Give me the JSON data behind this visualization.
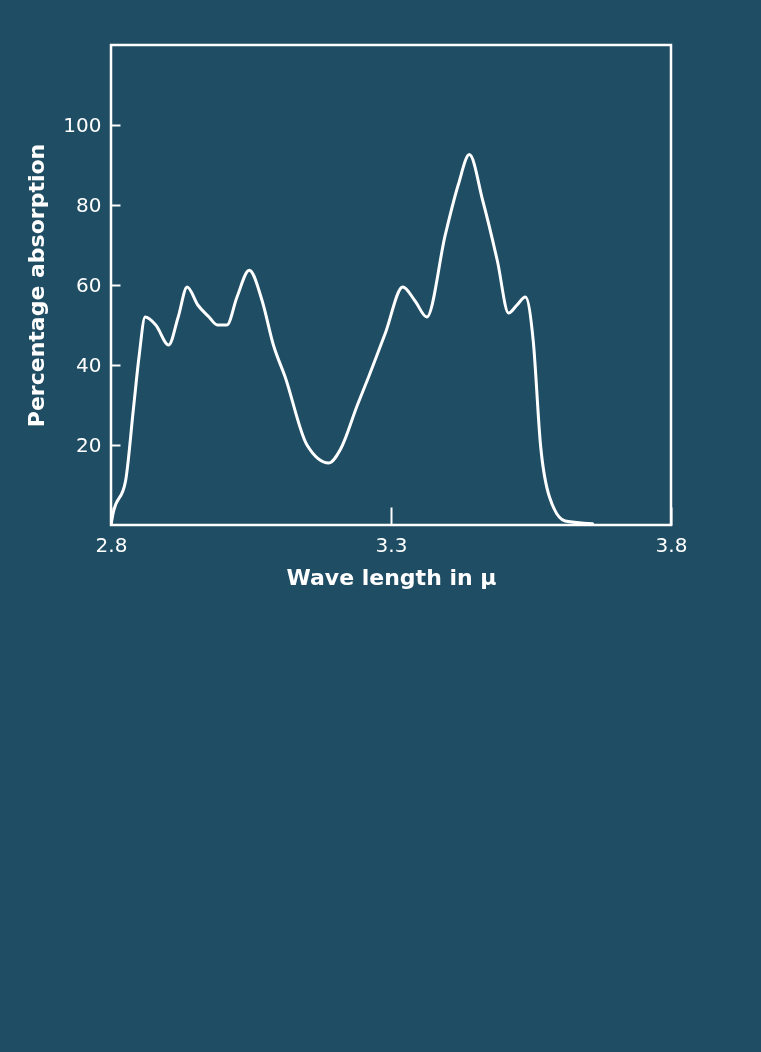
{
  "chart_data": {
    "type": "line",
    "xlabel": "Wave length in μ",
    "ylabel": "Percentage absorption",
    "x": [
      2.8,
      2.803,
      2.826,
      2.84,
      2.85,
      2.861,
      2.88,
      2.903,
      2.92,
      2.936,
      2.955,
      2.975,
      2.99,
      3.007,
      3.025,
      3.047,
      3.07,
      3.09,
      3.111,
      3.15,
      3.189,
      3.21,
      3.24,
      3.26,
      3.29,
      3.321,
      3.343,
      3.364,
      3.397,
      3.42,
      3.44,
      3.464,
      3.49,
      3.51,
      3.525,
      3.54,
      3.554,
      3.567,
      3.583,
      3.611,
      3.66
    ],
    "series": [
      {
        "color": "#ffffff",
        "values": [
          0,
          2.4,
          11,
          29,
          42,
          52,
          50,
          45,
          52,
          59.5,
          55,
          52,
          50,
          50,
          57,
          63.7,
          56,
          45,
          37,
          20,
          15.5,
          19,
          30,
          37,
          48,
          59.5,
          56,
          52,
          72.6,
          85,
          92.6,
          81,
          66,
          53,
          55,
          57,
          46,
          20,
          7,
          1,
          0.3
        ]
      }
    ],
    "xlim": [
      2.8,
      3.8
    ],
    "xticks": [
      2.8,
      3.3,
      3.8
    ],
    "ylim": [
      0,
      120
    ],
    "yticks": [
      20,
      40,
      60,
      80,
      100
    ],
    "grid": false,
    "marker": "none",
    "line_style": "solid"
  }
}
